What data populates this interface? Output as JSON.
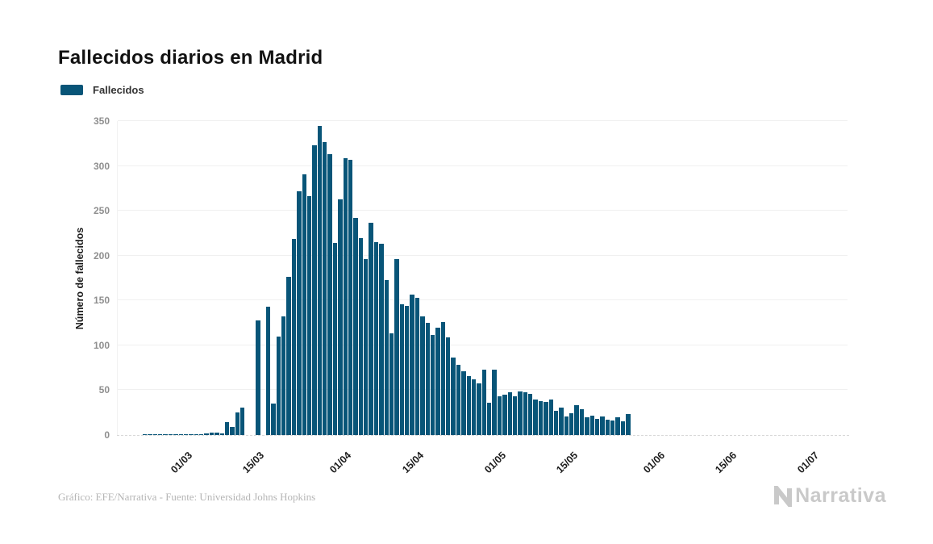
{
  "title": "Fallecidos diarios en Madrid",
  "legend": {
    "label": "Fallecidos",
    "color": "#085578"
  },
  "footer": {
    "credit": "Gráfico: EFE/Narrativa - Fuente: Universidad Johns Hopkins",
    "brand": "Narrativa"
  },
  "colors": {
    "bar": "#085578",
    "grid": "#f0f0f0",
    "baseline": "#d9d9d9",
    "y_tick_text": "#8f8f8f",
    "x_tick_text": "#1c1c1c"
  },
  "chart_data": {
    "type": "bar",
    "title": "Fallecidos diarios en Madrid",
    "xlabel": "",
    "ylabel": "Número de fallecidos",
    "ylim": [
      0,
      350
    ],
    "y_ticks": [
      0,
      50,
      100,
      150,
      200,
      250,
      300,
      350
    ],
    "grid": true,
    "legend_position": "top-left",
    "series": [
      {
        "name": "Fallecidos",
        "color": "#085578",
        "values": [
          0,
          0,
          0,
          0,
          0,
          1,
          1,
          1,
          1,
          1,
          1,
          1,
          1,
          1,
          1,
          1,
          1,
          2,
          3,
          3,
          2,
          14,
          9,
          25,
          31,
          0,
          0,
          128,
          0,
          143,
          35,
          110,
          132,
          176,
          219,
          272,
          291,
          266,
          323,
          345,
          327,
          313,
          214,
          263,
          309,
          307,
          242,
          220,
          196,
          237,
          215,
          213,
          173,
          113,
          196,
          146,
          144,
          157,
          153,
          132,
          125,
          112,
          120,
          126,
          109,
          86,
          78,
          71,
          66,
          62,
          58,
          73,
          36,
          73,
          43,
          45,
          48,
          43,
          49,
          48,
          46,
          40,
          38,
          37,
          40,
          27,
          31,
          21,
          24,
          33,
          29,
          20,
          22,
          18,
          21,
          17,
          16,
          20,
          15,
          23,
          0,
          0,
          0,
          0,
          0,
          0,
          0,
          0,
          0,
          0,
          0,
          0,
          0,
          0,
          0,
          0,
          0,
          0,
          0,
          0,
          0,
          0,
          0,
          0,
          0,
          0,
          0,
          0,
          0,
          0,
          0,
          0,
          0,
          0,
          0,
          0,
          0,
          0,
          0,
          0,
          0,
          0
        ]
      }
    ],
    "x_tick_labels": [
      "01/03",
      "15/03",
      "01/04",
      "15/04",
      "01/05",
      "15/05",
      "01/06",
      "15/06",
      "01/07"
    ],
    "x_tick_indices": [
      13,
      27,
      44,
      58,
      74,
      88,
      105,
      119,
      135
    ]
  }
}
